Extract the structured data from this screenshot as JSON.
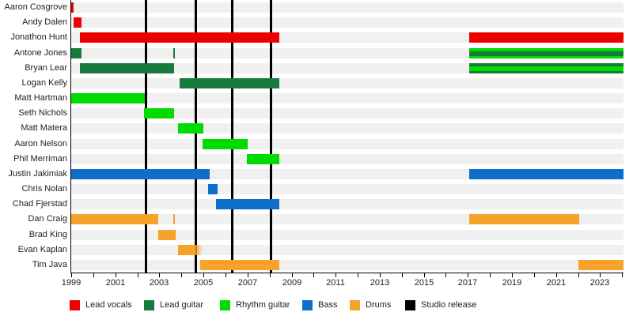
{
  "chart_data": {
    "type": "gantt-timeline",
    "title": "",
    "x_axis": {
      "start": 1999,
      "end": 2024.1,
      "tick_interval": 1,
      "label_years": [
        1999,
        2001,
        2003,
        2005,
        2007,
        2009,
        2011,
        2013,
        2015,
        2017,
        2019,
        2021,
        2023
      ]
    },
    "legend": [
      {
        "id": "lead_vocals",
        "label": "Lead vocals",
        "color": "#ee0000"
      },
      {
        "id": "lead_guitar",
        "label": "Lead guitar",
        "color": "#177b3c"
      },
      {
        "id": "rhythm_guitar",
        "label": "Rhythm guitar",
        "color": "#00db00"
      },
      {
        "id": "bass",
        "label": "Bass",
        "color": "#0d6fc9"
      },
      {
        "id": "drums",
        "label": "Drums",
        "color": "#f7a22b"
      },
      {
        "id": "studio_release",
        "label": "Studio release",
        "color": "#000000"
      }
    ],
    "studio_release_years": [
      2002.41,
      2004.67,
      2006.29,
      2008.08
    ],
    "members": [
      {
        "name": "Aaron Cosgrove",
        "segments": [
          {
            "role": "lead_vocals",
            "start": 1999.0,
            "end": 1999.12
          }
        ]
      },
      {
        "name": "Andy Dalen",
        "segments": [
          {
            "role": "lead_vocals",
            "start": 1999.1,
            "end": 1999.47
          }
        ]
      },
      {
        "name": "Jonathon Hunt",
        "segments": [
          {
            "role": "lead_vocals",
            "start": 1999.4,
            "end": 2008.44
          },
          {
            "role": "lead_vocals",
            "start": 2017.05,
            "end": 2024.05
          }
        ]
      },
      {
        "name": "Antone Jones",
        "segments": [
          {
            "role": "lead_guitar",
            "start": 1999.0,
            "end": 1999.47
          },
          {
            "role": "lead_guitar",
            "type": "tick",
            "at": 2003.67
          },
          {
            "role": "rhythm_guitar",
            "stripe": "lead_guitar",
            "start": 2017.05,
            "end": 2024.05
          }
        ]
      },
      {
        "name": "Bryan Lear",
        "segments": [
          {
            "role": "lead_guitar",
            "start": 1999.4,
            "end": 2003.67
          },
          {
            "role": "lead_guitar",
            "stripe": "rhythm_guitar",
            "start": 2017.05,
            "end": 2024.05
          }
        ]
      },
      {
        "name": "Logan Kelly",
        "segments": [
          {
            "role": "lead_guitar",
            "start": 2003.92,
            "end": 2008.44
          }
        ]
      },
      {
        "name": "Matt Hartman",
        "segments": [
          {
            "role": "rhythm_guitar",
            "start": 1999.0,
            "end": 2002.34
          }
        ]
      },
      {
        "name": "Seth Nichols",
        "segments": [
          {
            "role": "rhythm_guitar",
            "start": 2002.3,
            "end": 2003.67
          }
        ]
      },
      {
        "name": "Matt Matera",
        "segments": [
          {
            "role": "rhythm_guitar",
            "start": 2003.85,
            "end": 2005.0
          }
        ]
      },
      {
        "name": "Aaron Nelson",
        "segments": [
          {
            "role": "rhythm_guitar",
            "start": 2004.95,
            "end": 2007.0
          }
        ]
      },
      {
        "name": "Phil Merriman",
        "segments": [
          {
            "role": "rhythm_guitar",
            "start": 2006.97,
            "end": 2008.44
          }
        ]
      },
      {
        "name": "Justin Jakimiak",
        "segments": [
          {
            "role": "bass",
            "start": 1999.0,
            "end": 2005.28
          },
          {
            "role": "bass",
            "start": 2017.05,
            "end": 2024.05
          }
        ]
      },
      {
        "name": "Chris Nolan",
        "segments": [
          {
            "role": "bass",
            "start": 2005.21,
            "end": 2005.64
          }
        ]
      },
      {
        "name": "Chad Fjerstad",
        "segments": [
          {
            "role": "bass",
            "start": 2005.57,
            "end": 2008.44
          }
        ]
      },
      {
        "name": "Dan Craig",
        "segments": [
          {
            "role": "drums",
            "start": 1999.0,
            "end": 2002.95
          },
          {
            "role": "drums",
            "type": "tick",
            "at": 2003.67
          },
          {
            "role": "drums",
            "start": 2017.05,
            "end": 2022.05
          }
        ]
      },
      {
        "name": "Brad King",
        "segments": [
          {
            "role": "drums",
            "start": 2002.95,
            "end": 2003.74
          }
        ]
      },
      {
        "name": "Evan Kaplan",
        "segments": [
          {
            "role": "drums",
            "start": 2003.85,
            "end": 2005.0,
            "fade_end": true
          }
        ]
      },
      {
        "name": "Tim Java",
        "segments": [
          {
            "role": "drums",
            "start": 2004.85,
            "end": 2008.44
          },
          {
            "role": "drums",
            "start": 2022.0,
            "end": 2024.05
          }
        ]
      }
    ]
  }
}
